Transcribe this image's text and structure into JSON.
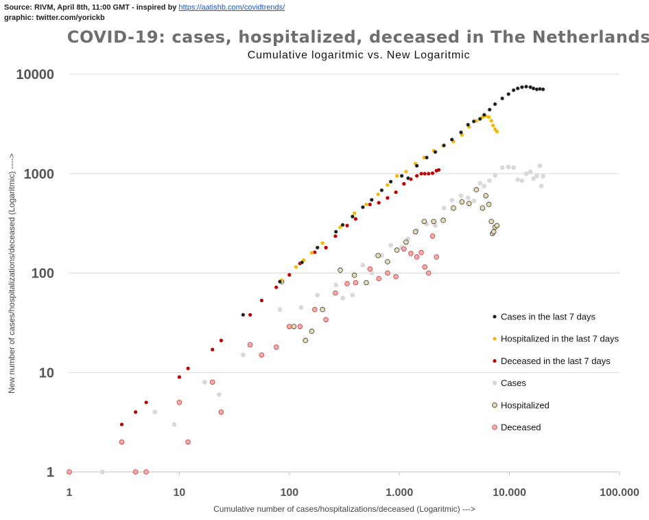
{
  "source": {
    "line1_prefix": "Source: RIVM, April 8th, 11:00 GMT  - inspired by ",
    "link_text": "https://aatishb.com/covidtrends/",
    "line2": "graphic: twitter.com/yorickb"
  },
  "chart_data": {
    "type": "scatter",
    "title": "COVID-19: cases, hospitalized, deceased in The Netherlands",
    "subtitle": "Cumulative logaritmic vs. New Logaritmic",
    "xlabel": "Cumulative number of cases/hospitalizations/deceased (Logaritmic) --->",
    "ylabel": "New number of cases/hospitalizations/deceased (Logaritmic)   ---->",
    "x_scale": "log",
    "y_scale": "log",
    "xlim": [
      1,
      100000
    ],
    "ylim": [
      1,
      10000
    ],
    "x_ticks": [
      "1",
      "10",
      "100",
      "1.000",
      "10.000",
      "100.000"
    ],
    "y_ticks": [
      "1",
      "10",
      "100",
      "1000",
      "10000"
    ],
    "grid": "horizontal",
    "legend_position": "right",
    "colors": {
      "cases7": "#1a1a1a",
      "hosp7": "#f5b800",
      "dec7": "#c00000",
      "cases": "#d9d9d9",
      "hosp": "#e5dcb4",
      "dec": "#f4aaaa"
    },
    "series": [
      {
        "name": "Cases in the last 7 days",
        "style": "cases7",
        "points": [
          [
            38,
            38
          ],
          [
            82,
            82
          ],
          [
            130,
            128
          ],
          [
            180,
            180
          ],
          [
            265,
            260
          ],
          [
            305,
            305
          ],
          [
            375,
            370
          ],
          [
            465,
            460
          ],
          [
            560,
            545
          ],
          [
            690,
            680
          ],
          [
            835,
            830
          ],
          [
            1050,
            950
          ],
          [
            1200,
            900
          ],
          [
            1440,
            1200
          ],
          [
            1770,
            1450
          ],
          [
            2120,
            1650
          ],
          [
            2540,
            1920
          ],
          [
            3000,
            2200
          ],
          [
            3630,
            2600
          ],
          [
            4200,
            3100
          ],
          [
            4750,
            3350
          ],
          [
            5400,
            3550
          ],
          [
            5900,
            3900
          ],
          [
            6600,
            4400
          ],
          [
            7400,
            5000
          ],
          [
            8600,
            5700
          ],
          [
            9800,
            6300
          ],
          [
            10900,
            6900
          ],
          [
            11900,
            7200
          ],
          [
            13000,
            7400
          ],
          [
            14200,
            7500
          ],
          [
            15500,
            7400
          ],
          [
            16500,
            7200
          ],
          [
            17700,
            7050
          ],
          [
            18900,
            7100
          ],
          [
            20200,
            7050
          ]
        ]
      },
      {
        "name": "Hospitalized in the last 7 days",
        "style": "hosp7",
        "points": [
          [
            85,
            85
          ],
          [
            115,
            115
          ],
          [
            135,
            135
          ],
          [
            160,
            160
          ],
          [
            200,
            200
          ],
          [
            290,
            290
          ],
          [
            390,
            400
          ],
          [
            500,
            490
          ],
          [
            640,
            620
          ],
          [
            780,
            770
          ],
          [
            950,
            950
          ],
          [
            1150,
            1050
          ],
          [
            1400,
            1260
          ],
          [
            1680,
            1450
          ],
          [
            2050,
            1700
          ],
          [
            2500,
            1900
          ],
          [
            3100,
            2100
          ],
          [
            3700,
            2450
          ],
          [
            4300,
            2950
          ],
          [
            5000,
            3400
          ],
          [
            5700,
            3700
          ],
          [
            6100,
            3800
          ],
          [
            6500,
            3700
          ],
          [
            6850,
            3400
          ],
          [
            7100,
            3050
          ],
          [
            7400,
            2800
          ],
          [
            7700,
            2650
          ]
        ]
      },
      {
        "name": "Deceased  in the last 7 days",
        "style": "dec7",
        "points": [
          [
            3,
            3
          ],
          [
            4,
            4
          ],
          [
            5,
            5
          ],
          [
            10,
            9
          ],
          [
            12,
            11
          ],
          [
            20,
            17
          ],
          [
            24,
            21
          ],
          [
            44,
            38
          ],
          [
            56,
            53
          ],
          [
            76,
            72
          ],
          [
            100,
            96
          ],
          [
            125,
            125
          ],
          [
            170,
            162
          ],
          [
            215,
            180
          ],
          [
            262,
            235
          ],
          [
            335,
            300
          ],
          [
            400,
            350
          ],
          [
            540,
            490
          ],
          [
            650,
            510
          ],
          [
            780,
            570
          ],
          [
            930,
            650
          ],
          [
            1100,
            790
          ],
          [
            1270,
            880
          ],
          [
            1440,
            950
          ],
          [
            1580,
            1000
          ],
          [
            1700,
            1000
          ],
          [
            1840,
            1000
          ],
          [
            2000,
            1010
          ],
          [
            2170,
            1070
          ],
          [
            2280,
            1090
          ]
        ]
      },
      {
        "name": "Cases",
        "style": "cases",
        "points": [
          [
            2,
            1
          ],
          [
            6,
            4
          ],
          [
            9,
            3
          ],
          [
            17,
            8
          ],
          [
            23,
            6
          ],
          [
            38,
            15
          ],
          [
            82,
            43
          ],
          [
            128,
            45
          ],
          [
            180,
            60
          ],
          [
            265,
            76
          ],
          [
            305,
            56
          ],
          [
            375,
            60
          ],
          [
            465,
            120
          ],
          [
            560,
            100
          ],
          [
            690,
            150
          ],
          [
            835,
            190
          ],
          [
            1050,
            180
          ],
          [
            1200,
            220
          ],
          [
            1440,
            270
          ],
          [
            1770,
            310
          ],
          [
            2120,
            300
          ],
          [
            2540,
            450
          ],
          [
            3000,
            540
          ],
          [
            3630,
            600
          ],
          [
            4200,
            570
          ],
          [
            4750,
            530
          ],
          [
            5400,
            800
          ],
          [
            5900,
            750
          ],
          [
            6600,
            850
          ],
          [
            7400,
            960
          ],
          [
            8600,
            1150
          ],
          [
            9800,
            1170
          ],
          [
            10900,
            1150
          ],
          [
            11900,
            870
          ],
          [
            13000,
            850
          ],
          [
            14200,
            1000
          ],
          [
            15500,
            1040
          ],
          [
            16500,
            890
          ],
          [
            17700,
            950
          ],
          [
            18900,
            1200
          ],
          [
            19500,
            750
          ],
          [
            20200,
            940
          ]
        ]
      },
      {
        "name": "Hospitalized",
        "style": "hosp",
        "points": [
          [
            85,
            82
          ],
          [
            110,
            29
          ],
          [
            140,
            21
          ],
          [
            160,
            26
          ],
          [
            200,
            43
          ],
          [
            290,
            107
          ],
          [
            390,
            95
          ],
          [
            500,
            80
          ],
          [
            640,
            150
          ],
          [
            780,
            130
          ],
          [
            950,
            170
          ],
          [
            1150,
            205
          ],
          [
            1400,
            260
          ],
          [
            1680,
            330
          ],
          [
            2050,
            330
          ],
          [
            2500,
            340
          ],
          [
            3100,
            450
          ],
          [
            3700,
            520
          ],
          [
            4300,
            500
          ],
          [
            5000,
            690
          ],
          [
            5700,
            450
          ],
          [
            6100,
            600
          ],
          [
            6500,
            490
          ],
          [
            6850,
            330
          ],
          [
            7000,
            250
          ],
          [
            7200,
            260
          ],
          [
            7400,
            290
          ],
          [
            7700,
            300
          ]
        ]
      },
      {
        "name": "Deceased",
        "style": "dec",
        "points": [
          [
            1,
            1
          ],
          [
            3,
            2
          ],
          [
            4,
            1
          ],
          [
            5,
            1
          ],
          [
            10,
            5
          ],
          [
            12,
            2
          ],
          [
            20,
            8
          ],
          [
            24,
            4
          ],
          [
            44,
            19
          ],
          [
            56,
            15
          ],
          [
            76,
            18
          ],
          [
            100,
            29
          ],
          [
            125,
            29
          ],
          [
            170,
            43
          ],
          [
            215,
            34
          ],
          [
            262,
            63
          ],
          [
            335,
            78
          ],
          [
            400,
            80
          ],
          [
            540,
            110
          ],
          [
            650,
            88
          ],
          [
            780,
            100
          ],
          [
            930,
            92
          ],
          [
            1100,
            175
          ],
          [
            1270,
            157
          ],
          [
            1440,
            145
          ],
          [
            1580,
            161
          ],
          [
            1700,
            115
          ],
          [
            1840,
            100
          ],
          [
            2000,
            235
          ],
          [
            2170,
            145
          ]
        ]
      }
    ]
  }
}
